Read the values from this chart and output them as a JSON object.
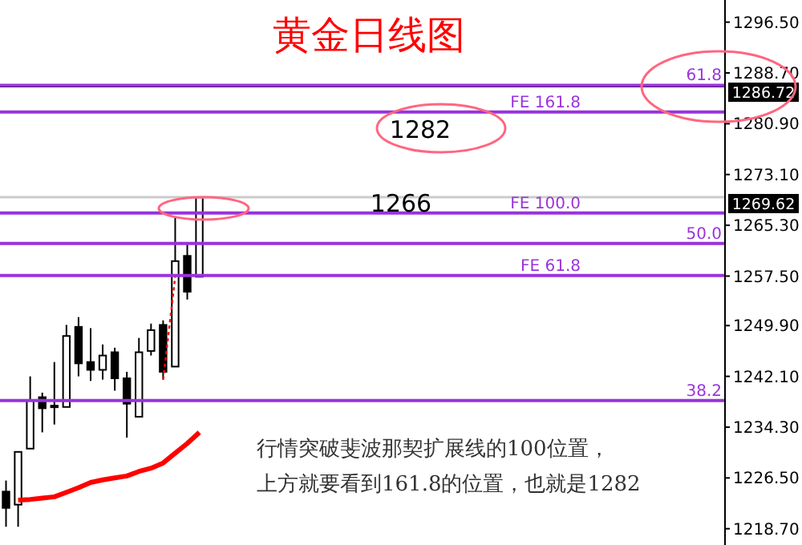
{
  "chart_data": {
    "type": "candlestick",
    "title": "黄金日线图",
    "categories": [
      null,
      null,
      null,
      null,
      null,
      null,
      null,
      null,
      null,
      null,
      null,
      null,
      null,
      null,
      null,
      null,
      null,
      null,
      null,
      null,
      null,
      null,
      null,
      null,
      null,
      null,
      null,
      null,
      null,
      null,
      null,
      null,
      null,
      null,
      null,
      null,
      null,
      null,
      null,
      null,
      null,
      null,
      null,
      null,
      null,
      null,
      null,
      null,
      null,
      null,
      null,
      null,
      null,
      null,
      null,
      null,
      null,
      null,
      null,
      null
    ],
    "ohlc": [
      [
        1224.4,
        1226.1,
        1219.0,
        1221.9
      ],
      [
        1222.4,
        1230.5,
        1219.0,
        1230.5
      ],
      [
        1231.0,
        1242.1,
        1231.0,
        1238.4
      ],
      [
        1238.9,
        1239.6,
        1233.5,
        1237.2
      ],
      [
        1237.4,
        1244.3,
        1234.7,
        1237.6
      ],
      [
        1237.4,
        1250.0,
        1237.4,
        1248.3
      ],
      [
        1249.7,
        1251.2,
        1242.1,
        1244.1
      ],
      [
        1244.3,
        1249.5,
        1241.4,
        1243.1
      ],
      [
        1243.1,
        1247.0,
        1241.6,
        1245.3
      ],
      [
        1245.8,
        1246.5,
        1239.9,
        1241.8
      ],
      [
        1241.8,
        1242.8,
        1232.7,
        1237.9
      ],
      [
        1235.9,
        1248.0,
        1235.9,
        1245.8
      ],
      [
        1246.0,
        1250.2,
        1245.3,
        1249.2
      ],
      [
        1250.0,
        1250.7,
        1241.6,
        1242.8
      ],
      [
        1243.6,
        1266.5,
        1243.6,
        1259.8
      ],
      [
        1260.6,
        1262.5,
        1253.9,
        1255.1
      ],
      [
        1257.4,
        1269.7,
        1257.4,
        1269.6
      ],
      null,
      null,
      null,
      null,
      null,
      null,
      null,
      null,
      null,
      null,
      null,
      null,
      null,
      null,
      null,
      null,
      null,
      null,
      null,
      null,
      null,
      null,
      null,
      null,
      null,
      null,
      null,
      null,
      null,
      null,
      null,
      null,
      null,
      null,
      null,
      null,
      null,
      null,
      null,
      null,
      null,
      null,
      null
    ],
    "series": [
      {
        "type": "line",
        "color": "#ff0000",
        "values": [
          null,
          1223.1,
          1223.2,
          1223.4,
          1223.6,
          1224.3,
          1225.0,
          1225.8,
          1226.2,
          1226.5,
          1226.8,
          1227.5,
          1228.0,
          1228.8,
          1230.3,
          1231.8,
          1233.5,
          null,
          null,
          null,
          null,
          null,
          null,
          null,
          null,
          null,
          null,
          null,
          null,
          null,
          null,
          null,
          null,
          null,
          null,
          null,
          null,
          null,
          null,
          null,
          null,
          null,
          null,
          null,
          null,
          null,
          null,
          null,
          null,
          null,
          null,
          null,
          null,
          null,
          null,
          null,
          null,
          null,
          null,
          null
        ]
      },
      {
        "type": "line",
        "color": "#ff0000",
        "line_style": "dotted",
        "values": [
          null,
          null,
          null,
          null,
          null,
          null,
          null,
          null,
          null,
          null,
          null,
          null,
          null,
          1241.6,
          1257.4,
          null,
          null,
          null,
          null,
          null,
          null,
          null,
          null,
          null,
          null,
          null,
          null,
          null,
          null,
          null,
          null,
          null,
          null,
          null,
          null,
          null,
          null,
          null,
          null,
          null,
          null,
          null,
          null,
          null,
          null,
          null,
          null,
          null,
          null,
          null,
          null,
          null,
          null,
          null,
          null,
          null,
          null,
          null,
          null,
          null
        ]
      }
    ],
    "ylim": [
      1216.2,
      1299.9
    ],
    "yticks": [
      {
        "value": 1218.7,
        "label": "1218.70"
      },
      {
        "value": 1226.5,
        "label": "1226.50"
      },
      {
        "value": 1234.3,
        "label": "1234.30"
      },
      {
        "value": 1242.1,
        "label": "1242.10"
      },
      {
        "value": 1249.9,
        "label": "1249.90"
      },
      {
        "value": 1257.5,
        "label": "1257.50"
      },
      {
        "value": 1265.3,
        "label": "1265.30"
      },
      {
        "value": 1273.1,
        "label": "1273.10"
      },
      {
        "value": 1280.9,
        "label": "1280.90"
      },
      {
        "value": 1288.7,
        "label": "1288.70"
      },
      {
        "value": 1296.5,
        "label": "1296.50"
      }
    ],
    "ref_lines": [
      {
        "axis": "y",
        "value": 1286.72,
        "label": "1286.72",
        "color": "#000000"
      },
      {
        "axis": "y",
        "value": 1269.62,
        "label": "1269.62",
        "color": "#cccccc"
      },
      {
        "axis": "y",
        "value": 1286.8,
        "color": "#9933dd"
      },
      {
        "axis": "y",
        "value": 1262.5,
        "color": "#9933dd"
      },
      {
        "axis": "y",
        "value": 1238.4,
        "color": "#9933dd"
      },
      {
        "axis": "y",
        "value": 1282.7,
        "label": "FE 161.8",
        "color": "#9933dd"
      },
      {
        "axis": "y",
        "value": 1267.2,
        "label": "FE 100.0",
        "color": "#9933dd"
      },
      {
        "axis": "y",
        "value": 1257.6,
        "label": "FE 61.8",
        "color": "#9933dd"
      }
    ],
    "annotations": [
      "1282",
      "1266",
      "行情突破斐波那契扩展线的100位置，",
      "上方就要看到161.8的位置，也就是1282",
      {
        "text": "61.8",
        "y": 1286.8
      },
      {
        "text": "50.0",
        "y": 1262.5
      },
      {
        "text": "38.2",
        "y": 1238.4
      }
    ]
  }
}
